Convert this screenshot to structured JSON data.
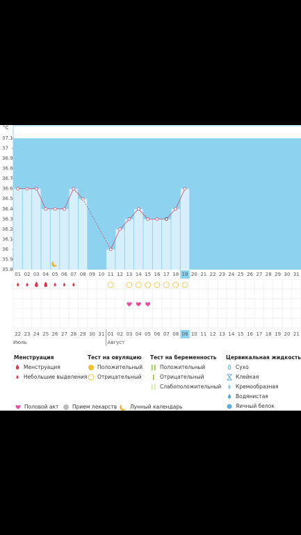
{
  "chart_data": {
    "type": "line",
    "y_label": "°C",
    "categories": [
      "01",
      "02",
      "03",
      "04",
      "05",
      "06",
      "07",
      "08",
      "09",
      "10",
      "11",
      "12",
      "13",
      "14",
      "15",
      "16",
      "17",
      "18",
      "19",
      "20",
      "21",
      "22",
      "23",
      "24",
      "25",
      "26",
      "27",
      "28",
      "29",
      "30",
      "31"
    ],
    "values": [
      36.6,
      36.6,
      36.6,
      36.4,
      36.4,
      36.4,
      36.6,
      36.5,
      null,
      null,
      36.0,
      36.2,
      36.3,
      36.4,
      36.3,
      36.3,
      36.3,
      36.4,
      36.6,
      null,
      null,
      null,
      null,
      null,
      null,
      null,
      null,
      null,
      null,
      null,
      null
    ],
    "color": "#c8506e",
    "ylim": [
      35.8,
      37.1
    ],
    "yticks": [
      35.8,
      35.9,
      36,
      36.1,
      36.2,
      36.3,
      36.4,
      36.5,
      36.6,
      36.7,
      36.8,
      36.9,
      37,
      37.1
    ]
  },
  "calendar": {
    "dates": [
      "22",
      "23",
      "24",
      "25",
      "26",
      "27",
      "28",
      "29",
      "30",
      "31",
      "01",
      "02",
      "03",
      "04",
      "05",
      "06",
      "07",
      "08",
      "09",
      "10",
      "11",
      "12",
      "13",
      "14",
      "15",
      "16",
      "17",
      "18",
      "19",
      "20",
      "21"
    ],
    "months": [
      "Июль",
      "Август"
    ]
  },
  "legend": [
    {
      "title": "Менструация",
      "items": [
        "Менструация",
        "Небольшие выделения"
      ]
    },
    {
      "title": "Тест на овуляцию",
      "items": [
        "Положительный",
        "Отрицательный"
      ]
    },
    {
      "title": "Тест на беременность",
      "items": [
        "Положительный",
        "Отрицательный",
        "Слабоположительный"
      ]
    },
    {
      "title": "Цервикальная жидкость",
      "items": [
        "Сухо",
        "Клейкая",
        "Кремообразная",
        "Водянистая",
        "Яичный белок"
      ]
    }
  ],
  "extras": [
    "Половой акт",
    "Прием лекарств",
    "Лунный календарь"
  ]
}
